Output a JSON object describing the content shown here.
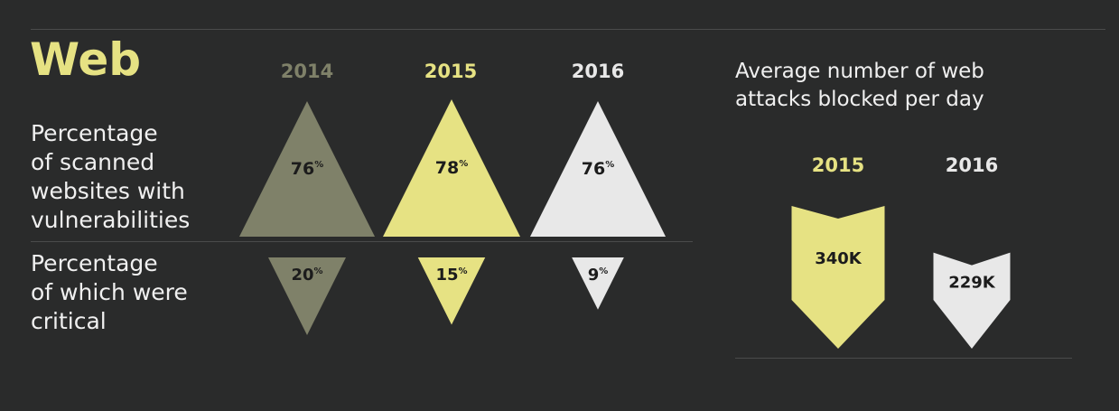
{
  "title": "Web",
  "colors": {
    "background": "#2a2b2b",
    "y2014": "#7f8169",
    "y2015": "#e6e283",
    "y2016": "#e8e8e8",
    "text_dark": "#1c1c1c",
    "text_light": "#f0f0f0"
  },
  "chart_data": [
    {
      "type": "bar",
      "categories": [
        "2014",
        "2015",
        "2016"
      ],
      "row_labels": [
        "Percentage\nof scanned\nwebsites with\nvulnerabilities",
        "Percentage\nof which were\ncritical"
      ],
      "series": [
        {
          "name": "Percentage of scanned websites with vulnerabilities",
          "values": [
            76,
            78,
            76
          ],
          "labels": [
            "76",
            "78",
            "76"
          ],
          "unit": "%"
        },
        {
          "name": "Percentage of which were critical",
          "values": [
            20,
            15,
            9
          ],
          "labels": [
            "20",
            "15",
            "9"
          ],
          "unit": "%"
        }
      ]
    },
    {
      "type": "bar",
      "title": "Average number of web\nattacks blocked per day",
      "categories": [
        "2015",
        "2016"
      ],
      "values": [
        340000,
        229000
      ],
      "labels": [
        "340K",
        "229K"
      ]
    }
  ]
}
